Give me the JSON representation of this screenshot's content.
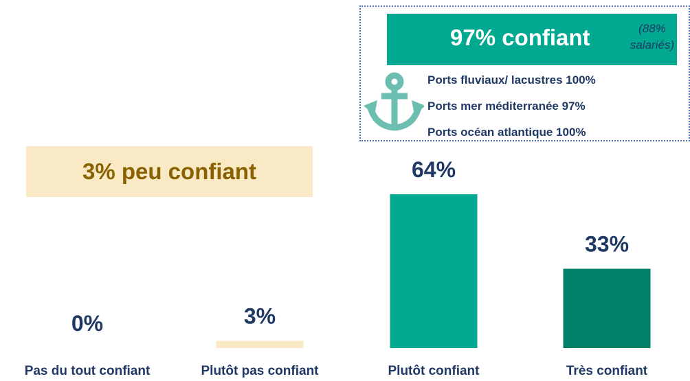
{
  "chart_data": {
    "type": "bar",
    "categories": [
      "Pas du tout confiant",
      "Plutôt pas confiant",
      "Plutôt confiant",
      "Très confiant"
    ],
    "values": [
      0,
      3,
      64,
      33
    ],
    "value_labels": [
      "0%",
      "3%",
      "64%",
      "33%"
    ],
    "colors": [
      "#f9e9c4",
      "#f9e9c4",
      "#00a98f",
      "#008066"
    ],
    "annotations": {
      "low_confidence": "3% peu confiant",
      "high_confidence": "97% confiant",
      "high_confidence_note": "(88% salariés)",
      "ports": [
        "Ports fluviaux/ lacustres 100%",
        "Ports mer méditerranée 97%",
        "Ports océan atlantique 100%"
      ]
    }
  }
}
